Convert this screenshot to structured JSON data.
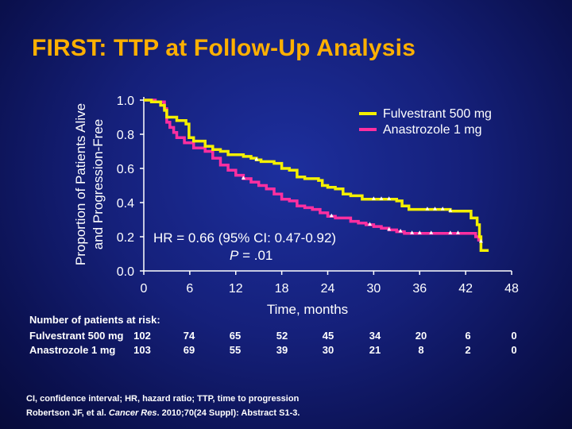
{
  "slide_title": "FIRST: TTP at Follow-Up Analysis",
  "colors": {
    "title": "#ffb000",
    "fulvestrant": "#f4f000",
    "anastrozole": "#ff2fa0",
    "axis": "#ffffff"
  },
  "chart_data": {
    "type": "line",
    "title": "",
    "xlabel": "Time, months",
    "ylabel_line1": "Proportion of Patients Alive",
    "ylabel_line2": "and Progression-Free",
    "xlim": [
      0,
      48
    ],
    "ylim": [
      0,
      1
    ],
    "x_ticks": [
      "0",
      "6",
      "12",
      "18",
      "24",
      "30",
      "36",
      "42",
      "48"
    ],
    "y_ticks": [
      "0.0",
      "0.2",
      "0.4",
      "0.6",
      "0.8",
      "1.0"
    ],
    "legend": [
      "Fulvestrant 500 mg",
      "Anastrozole 1 mg"
    ],
    "series": [
      {
        "name": "Fulvestrant 500 mg",
        "points": [
          [
            0,
            1.0
          ],
          [
            1,
            0.99
          ],
          [
            2.2,
            0.97
          ],
          [
            2.7,
            0.94
          ],
          [
            3.0,
            0.9
          ],
          [
            4.3,
            0.88
          ],
          [
            5.5,
            0.86
          ],
          [
            5.9,
            0.78
          ],
          [
            6.5,
            0.76
          ],
          [
            8,
            0.73
          ],
          [
            9,
            0.71
          ],
          [
            10,
            0.7
          ],
          [
            11,
            0.68
          ],
          [
            13,
            0.67
          ],
          [
            14,
            0.66
          ],
          [
            14.7,
            0.65
          ],
          [
            15.3,
            0.64
          ],
          [
            17,
            0.63
          ],
          [
            18,
            0.6
          ],
          [
            19,
            0.59
          ],
          [
            20,
            0.55
          ],
          [
            21,
            0.54
          ],
          [
            22.8,
            0.53
          ],
          [
            23.3,
            0.5
          ],
          [
            24,
            0.49
          ],
          [
            25,
            0.48
          ],
          [
            26,
            0.45
          ],
          [
            27,
            0.44
          ],
          [
            28.5,
            0.42
          ],
          [
            30,
            0.42
          ],
          [
            32,
            0.42
          ],
          [
            33,
            0.41
          ],
          [
            33.7,
            0.38
          ],
          [
            34,
            0.38
          ],
          [
            34.6,
            0.36
          ],
          [
            35,
            0.36
          ],
          [
            39,
            0.36
          ],
          [
            40,
            0.35
          ],
          [
            42,
            0.35
          ],
          [
            42.7,
            0.31
          ],
          [
            43,
            0.31
          ],
          [
            43.5,
            0.27
          ],
          [
            43.8,
            0.2
          ],
          [
            44,
            0.12
          ],
          [
            45,
            0.12
          ]
        ]
      },
      {
        "name": "Anastrozole 1 mg",
        "points": [
          [
            0,
            1.0
          ],
          [
            1.5,
            0.99
          ],
          [
            2.7,
            0.95
          ],
          [
            3.0,
            0.87
          ],
          [
            3.4,
            0.84
          ],
          [
            3.9,
            0.81
          ],
          [
            4.3,
            0.78
          ],
          [
            5.3,
            0.75
          ],
          [
            6.5,
            0.72
          ],
          [
            8,
            0.7
          ],
          [
            9,
            0.66
          ],
          [
            10,
            0.62
          ],
          [
            11,
            0.59
          ],
          [
            12,
            0.56
          ],
          [
            13,
            0.54
          ],
          [
            14,
            0.52
          ],
          [
            15,
            0.5
          ],
          [
            16,
            0.48
          ],
          [
            17,
            0.45
          ],
          [
            18,
            0.42
          ],
          [
            19,
            0.41
          ],
          [
            20,
            0.38
          ],
          [
            21,
            0.37
          ],
          [
            22,
            0.36
          ],
          [
            23,
            0.34
          ],
          [
            24,
            0.32
          ],
          [
            25,
            0.31
          ],
          [
            27,
            0.29
          ],
          [
            28,
            0.28
          ],
          [
            29,
            0.27
          ],
          [
            30,
            0.26
          ],
          [
            31,
            0.25
          ],
          [
            32,
            0.24
          ],
          [
            33,
            0.23
          ],
          [
            34,
            0.22
          ],
          [
            40,
            0.22
          ],
          [
            42,
            0.22
          ],
          [
            43,
            0.22
          ],
          [
            43.3,
            0.2
          ],
          [
            43.7,
            0.18
          ],
          [
            44,
            0.17
          ]
        ]
      }
    ],
    "hr_line": "HR = 0.66 (95% CI: 0.47-0.92)",
    "p_label": "P",
    "p_value": " = .01"
  },
  "risk_table": {
    "title": "Number of patients at risk:",
    "rows": [
      {
        "label": "Fulvestrant 500 mg",
        "values": [
          "102",
          "74",
          "65",
          "52",
          "45",
          "34",
          "20",
          "6",
          "0"
        ]
      },
      {
        "label": "Anastrozole 1 mg",
        "values": [
          "103",
          "69",
          "55",
          "39",
          "30",
          "21",
          "8",
          "2",
          "0"
        ]
      }
    ]
  },
  "footer": {
    "abbrev": "CI, confidence interval; HR, hazard ratio; TTP, time to progression",
    "ref_pre": "Robertson JF, et al. ",
    "ref_journal": "Cancer Res",
    "ref_post": ". 2010;70(24 Suppl): Abstract S1-3."
  }
}
